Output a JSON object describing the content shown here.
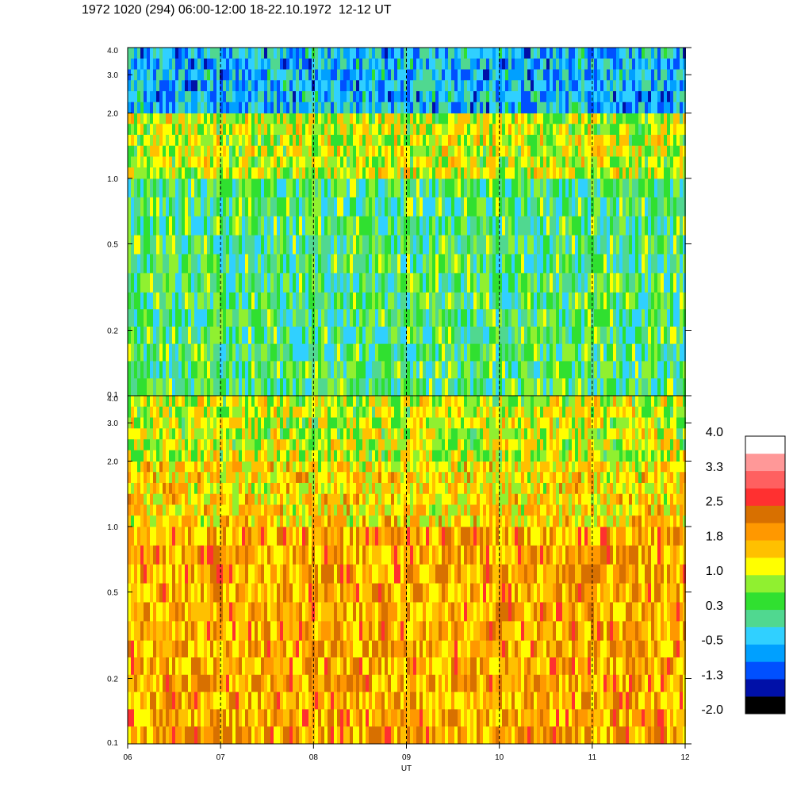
{
  "title": "1972 1020 (294) 06:00-12:00 18-22.10.1972  12-12 UT",
  "chart_data": [
    {
      "type": "heatmap",
      "panel": "top",
      "x_range": [
        6,
        12
      ],
      "y_range": [
        0.1,
        4.0
      ],
      "y_scale": "log",
      "y_tick_labels": [
        "0.1",
        "0.2",
        "0.5",
        "1.0",
        "2.0",
        "3.0",
        "4.0"
      ],
      "y_ticks": [
        0.1,
        0.2,
        0.5,
        1.0,
        2.0,
        3.0,
        4.0
      ],
      "dominant_values_by_band": {
        "low_0.1_0.3": 0.3,
        "mid_0.3_1.0": 0.3,
        "upper_1.0_2.0": 1.0,
        "top_2.0_4.0": -0.5
      }
    },
    {
      "type": "heatmap",
      "panel": "bottom",
      "x_range": [
        6,
        12
      ],
      "y_range": [
        0.1,
        4.0
      ],
      "y_scale": "log",
      "y_tick_labels": [
        "0.1",
        "0.2",
        "0.5",
        "1.0",
        "2.0",
        "3.0",
        "4.0"
      ],
      "y_ticks": [
        0.1,
        0.2,
        0.5,
        1.0,
        2.0,
        3.0,
        4.0
      ],
      "dominant_values_by_band": {
        "low_0.1_0.3": 1.8,
        "mid_0.3_1.0": 1.8,
        "upper_1.0_2.0": 1.4,
        "top_2.0_4.0": 1.0
      }
    }
  ],
  "x_axis": {
    "label": "UT",
    "tick_labels": [
      "06",
      "07",
      "08",
      "09",
      "10",
      "11",
      "12"
    ],
    "ticks": [
      6,
      7,
      8,
      9,
      10,
      11,
      12
    ],
    "grid": "dashed vertical lines at each hour"
  },
  "colorbar": {
    "labels": [
      "4.0",
      "3.3",
      "2.5",
      "1.8",
      "1.0",
      "0.3",
      "-0.5",
      "-1.3",
      "-2.0"
    ],
    "range": [
      -2.0,
      4.0
    ],
    "colors": [
      "#000000",
      "#0010a8",
      "#0050ff",
      "#00a0ff",
      "#30d0ff",
      "#50d890",
      "#30e030",
      "#90f030",
      "#ffff00",
      "#ffc000",
      "#ff9800",
      "#d87000",
      "#ff3030",
      "#ff6060",
      "#ff9898",
      "#ffffff"
    ]
  }
}
